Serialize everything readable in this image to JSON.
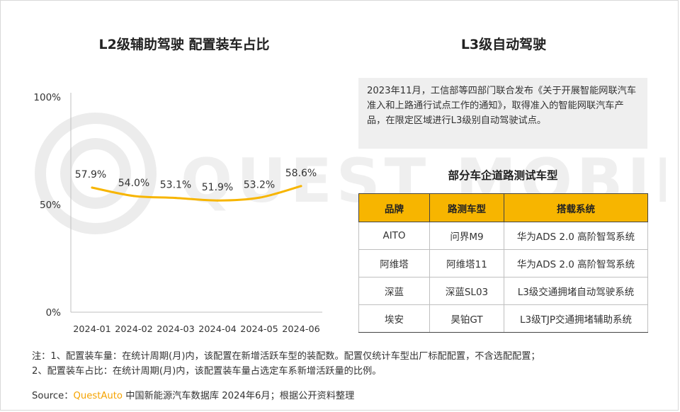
{
  "left_title": "L2级辅助驾驶 配置装车占比",
  "right_title": "L3级自动驾驶",
  "chart_data": {
    "type": "line",
    "title": "L2级辅助驾驶 配置装车占比",
    "categories": [
      "2024-01",
      "2024-02",
      "2024-03",
      "2024-04",
      "2024-05",
      "2024-06"
    ],
    "values": [
      57.9,
      54.0,
      53.1,
      51.9,
      53.2,
      58.6
    ],
    "data_labels": [
      "57.9%",
      "54.0%",
      "53.1%",
      "51.9%",
      "53.2%",
      "58.6%"
    ],
    "y_ticks": [
      "0%",
      "50%",
      "100%"
    ],
    "ylim": [
      0,
      100
    ],
    "line_color": "#f7b500",
    "grid": false,
    "smooth": true
  },
  "info_text": "2023年11月，工信部等四部门联合发布《关于开展智能网联汽车准入和上路通行试点工作的通知》，取得准入的智能网联汽车产品，在限定区域进行L3级别自动驾驶试点。",
  "table": {
    "title": "部分车企道路测试车型",
    "headers": [
      "品牌",
      "路测车型",
      "搭载系统"
    ],
    "rows": [
      [
        "AITO",
        "问界M9",
        "华为ADS 2.0 高阶智驾系统"
      ],
      [
        "阿维塔",
        "阿维塔11",
        "华为ADS 2.0 高阶智驾系统"
      ],
      [
        "深蓝",
        "深蓝SL03",
        "L3级交通拥堵自动驾驶系统"
      ],
      [
        "埃安",
        "昊铂GT",
        "L3级TJP交通拥堵辅助系统"
      ]
    ]
  },
  "notes": [
    "注：1、配置装车量：在统计周期(月)内，该配置在新增活跃车型的装配数。配置仅统计车型出厂标配配置，不含选配配置；",
    "2、配置装车占比：在统计周期(月)内，该配置装车量占选定车系新增活跃量的比例。"
  ],
  "source": {
    "prefix": "Source：",
    "brand": "QuestAuto",
    "text": " 中国新能源汽车数据库 2024年6月；根据公开资料整理"
  },
  "watermark": "QUEST MOBILE",
  "colors": {
    "accent": "#f7b500",
    "brand": "#f5a300",
    "info_bg": "#efefef"
  }
}
